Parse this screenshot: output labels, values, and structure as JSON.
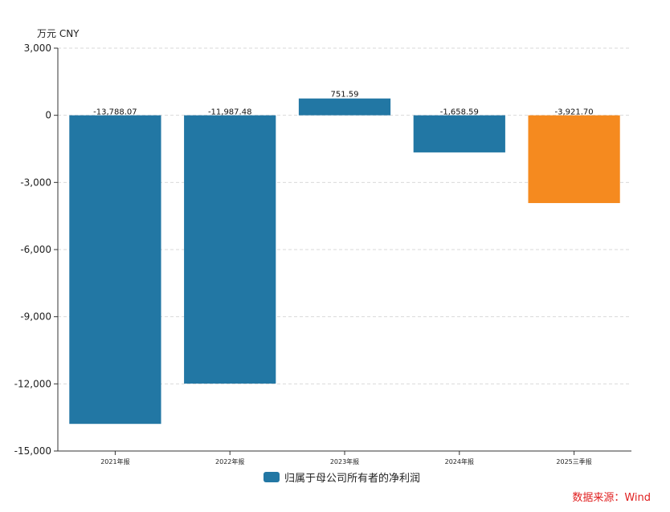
{
  "unit_label": "万元  CNY",
  "source_label": "数据来源：Wind",
  "colors": {
    "primary": "#2277a4",
    "highlight": "#f58a1f",
    "grid": "#d9d9d9",
    "axis": "#333333"
  },
  "chart_data": {
    "type": "bar",
    "categories": [
      "2021年报",
      "2022年报",
      "2023年报",
      "2024年报",
      "2025三季报"
    ],
    "series": [
      {
        "name": "归属于母公司所有者的净利润",
        "values": [
          -13788.07,
          -11987.48,
          751.59,
          -1658.59,
          -3921.7
        ],
        "value_labels": [
          "-13,788.07",
          "-11,987.48",
          "751.59",
          "-1,658.59",
          "-3,921.70"
        ],
        "highlight_index": 4
      }
    ],
    "ylim": [
      -15000,
      3000
    ],
    "yticks": [
      3000,
      0,
      -3000,
      -6000,
      -9000,
      -12000,
      -15000
    ],
    "ytick_labels": [
      "3,000",
      "0",
      "-3,000",
      "-6,000",
      "-9,000",
      "-12,000",
      "-15,000"
    ],
    "legend": "bottom-center",
    "grid": true
  }
}
